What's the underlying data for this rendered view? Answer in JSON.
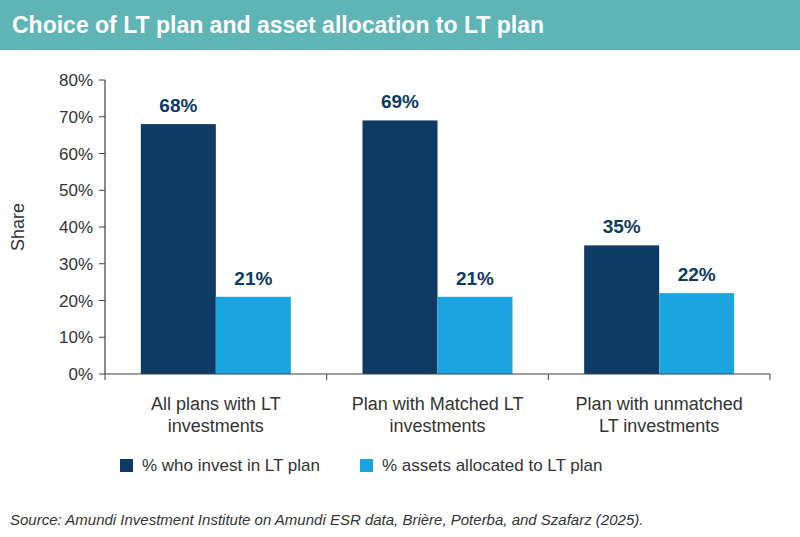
{
  "chart_data": {
    "type": "bar",
    "title": "Choice of LT plan and asset allocation to LT plan",
    "y_label": "Share",
    "source": "Source: Amundi Investment Institute on Amundi ESR data, Brière, Poterba, and Szafarz (2025).",
    "categories": [
      "All plans with LT investments",
      "Plan with Matched LT investments",
      "Plan with unmatched LT investments"
    ],
    "series": [
      {
        "name": "% who invest in LT plan",
        "color": "#0d3b63",
        "values": [
          68,
          69,
          35
        ],
        "value_labels": [
          "68%",
          "69%",
          "35%"
        ]
      },
      {
        "name": "% assets allocated to LT plan",
        "color": "#1aa5e0",
        "values": [
          21,
          21,
          22
        ],
        "value_labels": [
          "21%",
          "21%",
          "22%"
        ]
      }
    ],
    "ylim": [
      0,
      80
    ],
    "yticks": [
      {
        "value": 0,
        "label": "0%"
      },
      {
        "value": 10,
        "label": "10%"
      },
      {
        "value": 20,
        "label": "20%"
      },
      {
        "value": 30,
        "label": "30%"
      },
      {
        "value": 40,
        "label": "40%"
      },
      {
        "value": 50,
        "label": "50%"
      },
      {
        "value": 60,
        "label": "60%"
      },
      {
        "value": 70,
        "label": "70%"
      },
      {
        "value": 80,
        "label": "80%"
      }
    ],
    "grid": false,
    "legend": "bottom",
    "data_labels": true
  }
}
